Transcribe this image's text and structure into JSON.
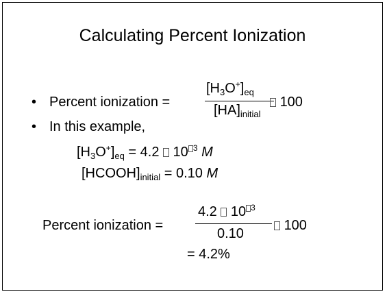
{
  "slide": {
    "title": "Calculating Percent Ionization",
    "formula": {
      "label": "Percent ionization =",
      "num_a": "[H",
      "num_b": "3",
      "num_c": "O",
      "num_d": "+",
      "num_e": "]",
      "num_f": "eq",
      "den_a": "[HA]",
      "den_b": "initial",
      "tail": "100"
    },
    "example_label": "In this example,",
    "eq1": {
      "a": "[H",
      "b": "3",
      "c": "O",
      "d": "+",
      "e": "]",
      "f": "eq",
      "g": " = 4.2 ",
      "h": " 10",
      "i": "3",
      "j": "M"
    },
    "eq2": {
      "a": "[HCOOH]",
      "b": "initial",
      "c": " = 0.10 ",
      "d": "M"
    },
    "calc": {
      "label": "Percent ionization =",
      "num_a": "4.2 ",
      "num_b": " 10",
      "num_c": "3",
      "den": "0.10",
      "tail": "100"
    },
    "result": "= 4.2%"
  }
}
